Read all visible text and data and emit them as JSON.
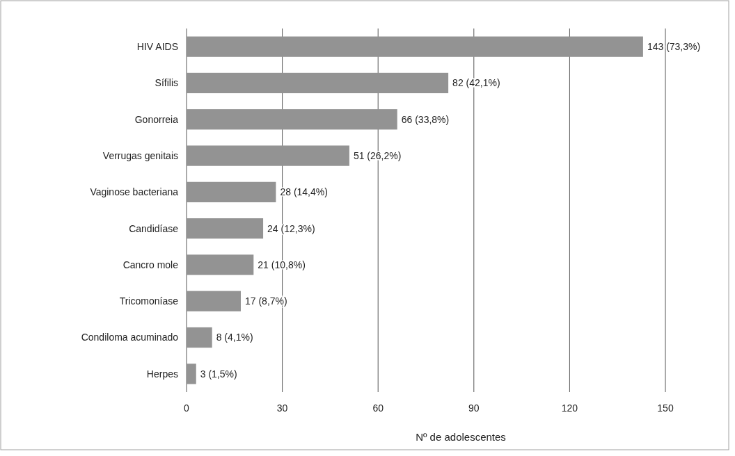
{
  "chart_data": {
    "type": "bar",
    "orientation": "horizontal",
    "xlabel": "Nº de adolescentes",
    "categories": [
      "HIV AIDS",
      "Sífilis",
      "Gonorreia",
      "Verrugas genitais",
      "Vaginose bacteriana",
      "Candidíase",
      "Cancro mole",
      "Tricomoníase",
      "Condiloma acuminado",
      "Herpes"
    ],
    "values": [
      143,
      82,
      66,
      51,
      28,
      24,
      21,
      17,
      8,
      3
    ],
    "value_labels": [
      "143 (73,3%)",
      "82 (42,1%)",
      "66 (33,8%)",
      "51 (26,2%)",
      "28 (14,4%)",
      "24 (12,3%)",
      "21 (10,8%)",
      "17 (8,7%)",
      "8 (4,1%)",
      "3 (1,5%)"
    ],
    "color": "#939393",
    "xlim": [
      0,
      150
    ],
    "xticks": [
      0,
      30,
      60,
      90,
      120,
      150
    ],
    "grid": "x"
  }
}
